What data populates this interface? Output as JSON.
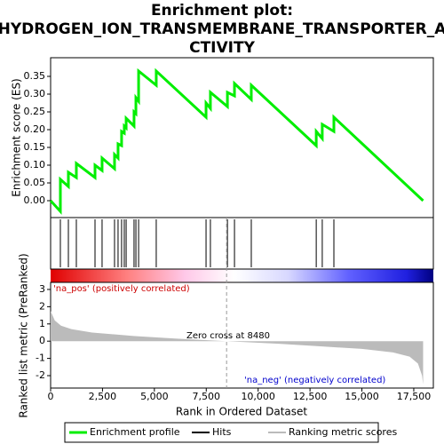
{
  "chart_data": [
    {
      "type": "line",
      "title": [
        "Enrichment plot:",
        "HYDROGEN_ION_TRANSMEMBRANE_TRANSPORTER_A",
        "CTIVITY"
      ],
      "ylabel": "Enrichment score (ES)",
      "xlim": [
        0,
        18443
      ],
      "ylim": [
        -0.0475,
        0.4025
      ],
      "yticks": [
        {
          "value": 0,
          "label": "0.00"
        },
        {
          "value": 0.05,
          "label": "0.05"
        },
        {
          "value": 0.1,
          "label": "0.10"
        },
        {
          "value": 0.15,
          "label": "0.15"
        },
        {
          "value": 0.2,
          "label": "0.20"
        },
        {
          "value": 0.25,
          "label": "0.25"
        },
        {
          "value": 0.3,
          "label": "0.30"
        },
        {
          "value": 0.35,
          "label": "0.35"
        }
      ],
      "x": [
        0,
        470,
        470,
        856,
        856,
        1240,
        1240,
        2140,
        2140,
        2480,
        2480,
        3080,
        3080,
        3250,
        3250,
        3420,
        3420,
        3550,
        3550,
        3640,
        3640,
        4020,
        4020,
        4110,
        4110,
        4240,
        4240,
        5090,
        5090,
        7490,
        7490,
        7700,
        7700,
        8520,
        8520,
        8860,
        8860,
        9670,
        9670,
        12800,
        12800,
        13090,
        13090,
        13650,
        13650,
        17950
      ],
      "series": [
        {
          "name": "Enrichment profile",
          "color": "#00ee00",
          "values": [
            0,
            -0.03,
            0.06,
            0.04,
            0.08,
            0.065,
            0.105,
            0.065,
            0.1,
            0.085,
            0.12,
            0.09,
            0.13,
            0.12,
            0.16,
            0.155,
            0.195,
            0.19,
            0.21,
            0.205,
            0.232,
            0.21,
            0.25,
            0.245,
            0.29,
            0.28,
            0.365,
            0.325,
            0.365,
            0.235,
            0.275,
            0.26,
            0.305,
            0.265,
            0.305,
            0.295,
            0.33,
            0.285,
            0.325,
            0.155,
            0.195,
            0.175,
            0.215,
            0.195,
            0.235,
            0.0
          ]
        }
      ]
    },
    {
      "type": "hits",
      "name": "Hits",
      "color": "#000000",
      "xlim": [
        0,
        18443
      ],
      "x": [
        470,
        856,
        1240,
        2140,
        2480,
        3080,
        3250,
        3420,
        3550,
        3640,
        4020,
        4110,
        4240,
        5090,
        7490,
        7700,
        8520,
        8860,
        9670,
        12800,
        13090,
        13650
      ]
    },
    {
      "type": "area",
      "name": "Ranking metric scores",
      "color": "#bbbbbb",
      "ylabel": "Ranked list metric (PreRanked)",
      "xlabel": "Rank in Ordered Dataset",
      "xlim": [
        0,
        18443
      ],
      "ylim": [
        -2.72,
        3.41
      ],
      "xticks": [
        0,
        {
          "value": 2500,
          "label": "2,500"
        },
        {
          "value": 5000,
          "label": "5,000"
        },
        {
          "value": 7500,
          "label": "7,500"
        },
        {
          "value": 10000,
          "label": "10,000"
        },
        {
          "value": 12500,
          "label": "12,500"
        },
        {
          "value": 15000,
          "label": "15,000"
        },
        {
          "value": 17500,
          "label": "17,500"
        }
      ],
      "yticks": [
        3,
        2,
        1,
        0,
        -1,
        -2
      ],
      "x": [
        0,
        200,
        500,
        1000,
        2000,
        4000,
        6000,
        8480,
        11000,
        13000,
        15000,
        16500,
        17300,
        17700,
        17900,
        17950
      ],
      "values": [
        1.75,
        1.2,
        0.9,
        0.7,
        0.5,
        0.3,
        0.15,
        0,
        -0.15,
        -0.3,
        -0.45,
        -0.65,
        -0.9,
        -1.3,
        -2.0,
        -2.5
      ],
      "zero_cross": 8480,
      "annotations": [
        "'na_pos' (positively correlated)",
        "Zero cross at 8480",
        "'na_neg' (negatively correlated)"
      ]
    }
  ]
}
